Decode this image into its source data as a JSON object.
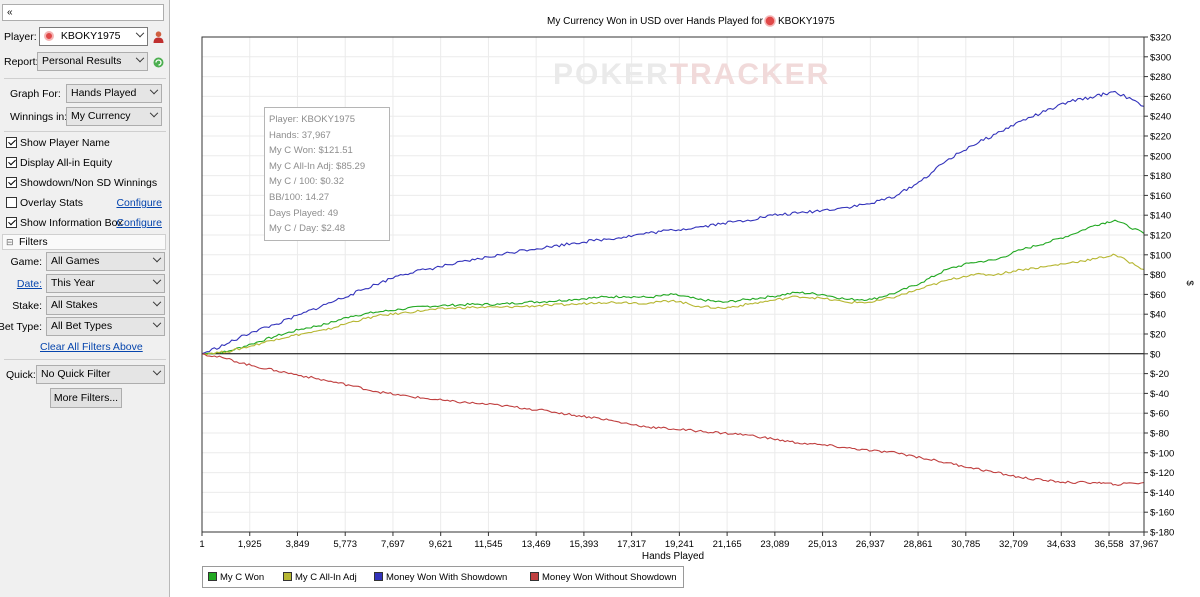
{
  "left_panel": {
    "collapse_glyph": "«",
    "player": {
      "label": "Player:",
      "value": "KBOKY1975"
    },
    "report": {
      "label": "Report:",
      "value": "Personal Results"
    },
    "graph_for": {
      "label": "Graph For:",
      "value": "Hands Played"
    },
    "winnings_in": {
      "label": "Winnings in:",
      "value": "My Currency"
    },
    "checkboxes": [
      {
        "label": "Show Player Name",
        "checked": true
      },
      {
        "label": "Display All-in Equity",
        "checked": true
      },
      {
        "label": "Showdown/Non SD Winnings",
        "checked": true
      },
      {
        "label": "Overlay Stats",
        "checked": false,
        "link": "Configure"
      },
      {
        "label": "Show Information Box",
        "checked": true,
        "link": "Configure"
      }
    ],
    "filters_header": "Filters",
    "filters_toggle": "⊟",
    "game": {
      "label": "Game:",
      "value": "All Games"
    },
    "date": {
      "label": "Date:",
      "value": "This Year"
    },
    "stake": {
      "label": "Stake:",
      "value": "All Stakes"
    },
    "bet_type": {
      "label": "Bet Type:",
      "value": "All Bet Types"
    },
    "clear_filters": "Clear All Filters Above",
    "quick": {
      "label": "Quick:",
      "value": "No Quick Filter"
    },
    "more_filters": "More Filters..."
  },
  "colors": {
    "my_c_won": "#22a822",
    "all_in_adj": "#b7b733",
    "showdown": "#3333bb",
    "non_showdown": "#c04040"
  },
  "icons": {
    "player_icon": "poker-chip-icon",
    "person_icon": "person-icon",
    "refresh_icon": "refresh-icon",
    "title_icon": "poker-chip-icon"
  },
  "watermark": {
    "part1": "POKER",
    "part2": "TRACKER"
  },
  "tooltip": [
    "Player: KBOKY1975",
    "Hands: 37,967",
    "My C Won: $121.51",
    "My C All-In Adj: $85.29",
    "My C / 100: $0.32",
    "BB/100: 14.27",
    "Days Played: 49",
    "My C / Day: $2.48"
  ],
  "chart_data": {
    "type": "line",
    "title": "My Currency Won in USD over Hands Played for KBOKY1975",
    "xlabel": "Hands Played",
    "ylabel": "$",
    "xlim": [
      1,
      37967
    ],
    "ylim": [
      -180,
      320
    ],
    "x_ticks": [
      "1",
      "1,925",
      "3,849",
      "5,773",
      "7,697",
      "9,621",
      "11,545",
      "13,469",
      "15,393",
      "17,317",
      "19,241",
      "21,165",
      "23,089",
      "25,013",
      "26,937",
      "28,861",
      "30,785",
      "32,709",
      "34,633",
      "36,558",
      "37,967"
    ],
    "y_ticks": [
      "$320",
      "$300",
      "$280",
      "$260",
      "$240",
      "$220",
      "$200",
      "$180",
      "$160",
      "$140",
      "$120",
      "$100",
      "$80",
      "$60",
      "$40",
      "$20",
      "$0",
      "$-20",
      "$-40",
      "$-60",
      "$-80",
      "$-100",
      "$-120",
      "$-140",
      "$-160",
      "$-180"
    ],
    "grid": true,
    "legend_position": "bottom-left",
    "x": [
      1,
      1000,
      2000,
      3000,
      4000,
      5000,
      6000,
      7000,
      8000,
      9000,
      10000,
      11000,
      12000,
      13000,
      14000,
      15000,
      16000,
      17000,
      18000,
      19000,
      20000,
      21000,
      22000,
      23000,
      24000,
      25000,
      26000,
      27000,
      28000,
      29000,
      30000,
      31000,
      32000,
      33000,
      34000,
      35000,
      36000,
      36800,
      37967
    ],
    "series": [
      {
        "name": "My C Won",
        "values": [
          0,
          2,
          10,
          18,
          25,
          30,
          38,
          42,
          45,
          48,
          49,
          50,
          50,
          52,
          53,
          55,
          57,
          58,
          57,
          60,
          55,
          52,
          55,
          58,
          62,
          60,
          55,
          55,
          62,
          72,
          85,
          92,
          95,
          105,
          112,
          120,
          130,
          135,
          121.51
        ]
      },
      {
        "name": "My C All-In Adj",
        "values": [
          0,
          2,
          8,
          15,
          20,
          24,
          32,
          38,
          41,
          44,
          46,
          47,
          47,
          48,
          49,
          50,
          52,
          52,
          51,
          54,
          48,
          46,
          50,
          54,
          58,
          56,
          52,
          52,
          58,
          66,
          74,
          80,
          80,
          85,
          88,
          92,
          96,
          100,
          85.29
        ]
      },
      {
        "name": "Money Won With Showdown",
        "values": [
          0,
          10,
          22,
          30,
          40,
          50,
          60,
          70,
          80,
          85,
          90,
          95,
          100,
          105,
          108,
          112,
          115,
          118,
          122,
          125,
          128,
          132,
          135,
          140,
          142,
          145,
          148,
          152,
          160,
          175,
          195,
          210,
          222,
          235,
          245,
          255,
          260,
          265,
          250
        ]
      },
      {
        "name": "Money Won Without Showdown",
        "values": [
          0,
          -5,
          -12,
          -17,
          -22,
          -27,
          -32,
          -38,
          -42,
          -45,
          -48,
          -50,
          -52,
          -55,
          -58,
          -62,
          -65,
          -70,
          -74,
          -76,
          -78,
          -80,
          -82,
          -86,
          -90,
          -92,
          -95,
          -98,
          -100,
          -105,
          -110,
          -115,
          -120,
          -125,
          -128,
          -130,
          -130,
          -132,
          -130
        ]
      }
    ]
  }
}
